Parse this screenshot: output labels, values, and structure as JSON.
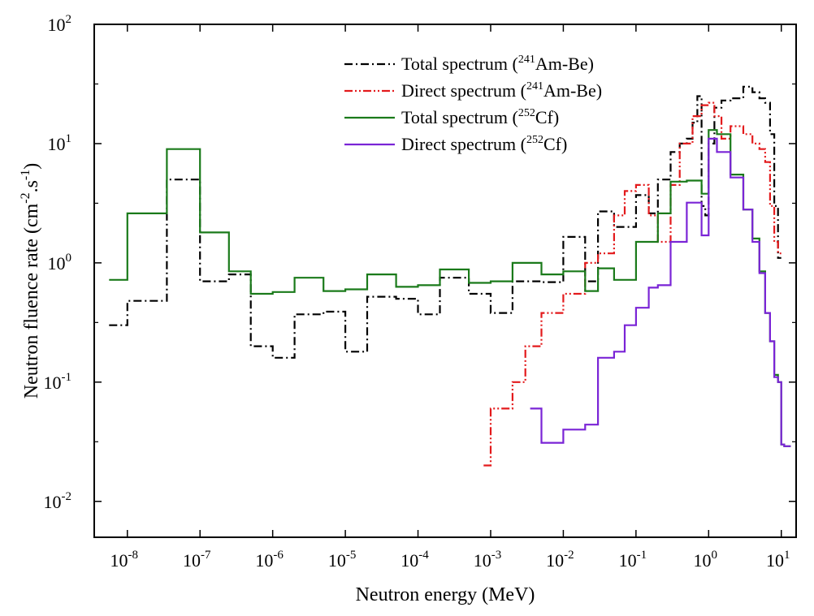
{
  "chart_data": {
    "type": "line",
    "step": true,
    "log_x": true,
    "log_y": true,
    "title": "",
    "xlabel": "Neutron energy (MeV)",
    "ylabel": "Neutron fluence rate (cm-2.s-1)",
    "xlim": [
      3.5e-09,
      16
    ],
    "ylim": [
      0.005,
      100
    ],
    "x_ticks": [
      {
        "value": 1e-08,
        "base": "10",
        "exp": "-8"
      },
      {
        "value": 1e-07,
        "base": "10",
        "exp": "-7"
      },
      {
        "value": 1e-06,
        "base": "10",
        "exp": "-6"
      },
      {
        "value": 1e-05,
        "base": "10",
        "exp": "-5"
      },
      {
        "value": 0.0001,
        "base": "10",
        "exp": "-4"
      },
      {
        "value": 0.001,
        "base": "10",
        "exp": "-3"
      },
      {
        "value": 0.01,
        "base": "10",
        "exp": "-2"
      },
      {
        "value": 0.1,
        "base": "10",
        "exp": "-1"
      },
      {
        "value": 1,
        "base": "10",
        "exp": "0"
      },
      {
        "value": 10,
        "base": "10",
        "exp": "1"
      }
    ],
    "y_ticks": [
      {
        "value": 0.01,
        "base": "10",
        "exp": "-2"
      },
      {
        "value": 0.1,
        "base": "10",
        "exp": "-1"
      },
      {
        "value": 1,
        "base": "10",
        "exp": "0"
      },
      {
        "value": 10,
        "base": "10",
        "exp": "1"
      },
      {
        "value": 100,
        "base": "10",
        "exp": "2"
      }
    ],
    "legend_position": "top-right",
    "series": [
      {
        "name": "Total spectrum (241Am-Be)",
        "label_pre": "Total spectrum (",
        "label_sup": "241",
        "label_post": "Am-Be)",
        "color": "#000000",
        "dash": "dash-dot",
        "edges": [
          5.6e-09,
          1e-08,
          3.5e-08,
          1e-07,
          2.5e-07,
          5e-07,
          1e-06,
          2e-06,
          5e-06,
          1e-05,
          2e-05,
          5e-05,
          0.0001,
          0.0002,
          0.0005,
          0.001,
          0.002,
          0.005,
          0.01,
          0.02,
          0.03,
          0.05,
          0.1,
          0.15,
          0.2,
          0.3,
          0.4,
          0.5,
          0.6,
          0.7,
          0.8,
          0.9,
          1.0,
          1.2,
          1.5,
          2,
          3,
          4,
          5,
          6,
          7,
          8,
          9,
          10
        ],
        "values": [
          0.3,
          0.48,
          5.0,
          0.7,
          0.8,
          0.2,
          0.16,
          0.37,
          0.39,
          0.18,
          0.52,
          0.5,
          0.37,
          0.75,
          0.55,
          0.38,
          0.7,
          0.69,
          1.65,
          0.7,
          2.7,
          2.0,
          3.7,
          2.6,
          5.0,
          8.5,
          10.0,
          11.0,
          15.0,
          25.0,
          3.0,
          2.5,
          10.0,
          20.0,
          23.0,
          24.0,
          30.0,
          27.0,
          24.0,
          22.0,
          12.0,
          3.0,
          1.1
        ]
      },
      {
        "name": "Direct spectrum (241Am-Be)",
        "label_pre": "Direct spectrum (",
        "label_sup": "241",
        "label_post": "Am-Be)",
        "color": "#e31a1c",
        "dash": "dash-dot-dot",
        "edges": [
          0.0008,
          0.001,
          0.002,
          0.003,
          0.005,
          0.01,
          0.02,
          0.03,
          0.05,
          0.07,
          0.1,
          0.15,
          0.2,
          0.3,
          0.4,
          0.6,
          0.8,
          1.0,
          1.2,
          1.5,
          2,
          3,
          4,
          5,
          6,
          7,
          8,
          9,
          10
        ],
        "values": [
          0.02,
          0.06,
          0.1,
          0.2,
          0.38,
          0.55,
          1.0,
          1.2,
          2.5,
          4.0,
          4.5,
          2.5,
          1.5,
          4.5,
          10.0,
          17.0,
          21.0,
          22.0,
          17.0,
          11.0,
          14.0,
          12.0,
          10.0,
          9.0,
          7.0,
          3.0,
          1.5,
          1.2
        ]
      },
      {
        "name": "Total spectrum (252Cf)",
        "label_pre": "Total spectrum (",
        "label_sup": "252",
        "label_post": "Cf)",
        "color": "#1a7a1a",
        "dash": "solid",
        "edges": [
          5.6e-09,
          1e-08,
          3.5e-08,
          1e-07,
          2.5e-07,
          5e-07,
          1e-06,
          2e-06,
          5e-06,
          1e-05,
          2e-05,
          5e-05,
          0.0001,
          0.0002,
          0.0005,
          0.001,
          0.002,
          0.005,
          0.01,
          0.02,
          0.03,
          0.05,
          0.1,
          0.2,
          0.3,
          0.5,
          0.8,
          1.0,
          1.3,
          2,
          3,
          4,
          5,
          6,
          7,
          8,
          9,
          10,
          11,
          13.5
        ],
        "values": [
          0.72,
          2.6,
          9.0,
          1.8,
          0.85,
          0.55,
          0.57,
          0.75,
          0.58,
          0.6,
          0.8,
          0.63,
          0.65,
          0.88,
          0.68,
          0.7,
          1.0,
          0.8,
          0.85,
          0.58,
          0.9,
          0.72,
          1.5,
          2.6,
          4.8,
          4.9,
          3.8,
          13.0,
          12.0,
          5.5,
          2.8,
          1.6,
          0.85,
          0.38,
          0.22,
          0.115,
          0.1,
          0.03,
          0.029
        ]
      },
      {
        "name": "Direct spectrum (252Cf)",
        "label_pre": "Direct spectrum (",
        "label_sup": "252",
        "label_post": "Cf)",
        "color": "#7a24d6",
        "dash": "solid",
        "edges": [
          0.0035,
          0.005,
          0.01,
          0.02,
          0.03,
          0.05,
          0.07,
          0.1,
          0.15,
          0.2,
          0.3,
          0.5,
          0.8,
          1.0,
          1.3,
          2,
          3,
          4,
          5,
          6,
          7,
          8,
          9,
          10,
          11,
          13.5
        ],
        "values": [
          0.06,
          0.031,
          0.04,
          0.044,
          0.16,
          0.18,
          0.3,
          0.42,
          0.62,
          0.65,
          1.5,
          3.2,
          1.7,
          11.0,
          8.5,
          5.2,
          2.8,
          1.5,
          0.82,
          0.38,
          0.22,
          0.11,
          0.1,
          0.03,
          0.029
        ]
      }
    ]
  }
}
